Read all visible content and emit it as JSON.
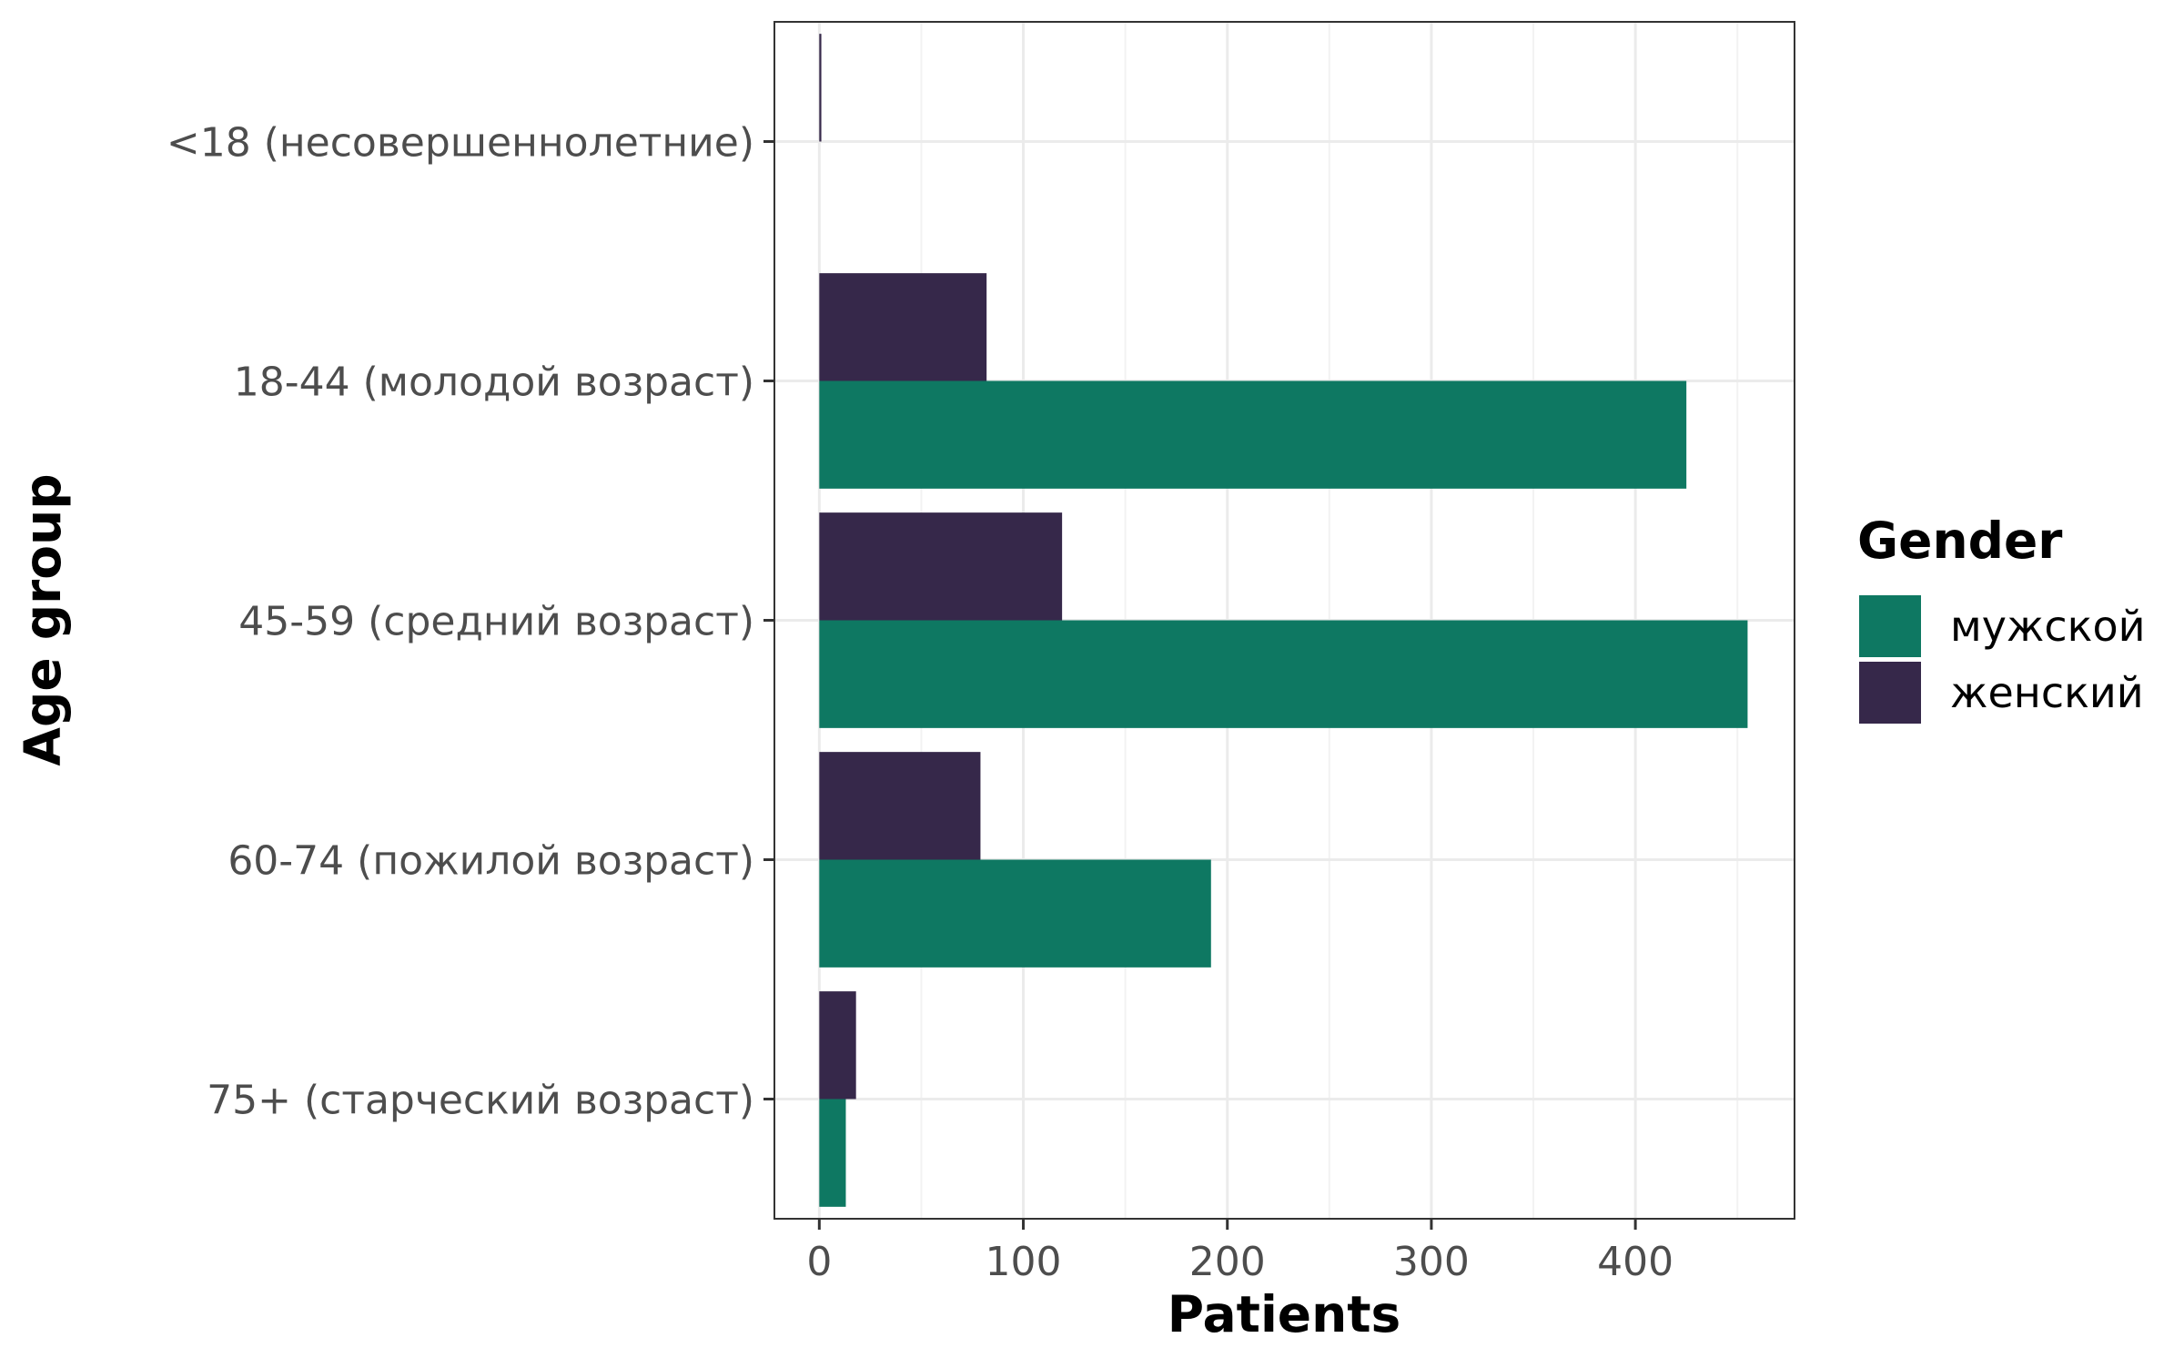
{
  "chart_data": {
    "type": "bar",
    "orientation": "horizontal",
    "categories": [
      "<18 (несовершеннолетние)",
      "18-44 (молодой возраст)",
      "45-59 (средний возраст)",
      "60-74 (пожилой возраст)",
      "75+ (старческий возраст)"
    ],
    "series": [
      {
        "name": "мужской",
        "color": "#0e7862",
        "values": [
          0,
          425,
          455,
          192,
          13
        ]
      },
      {
        "name": "женский",
        "color": "#36284a",
        "values": [
          1,
          82,
          119,
          79,
          18
        ]
      }
    ],
    "xlabel": "Patients",
    "ylabel": "Age group",
    "xlim": [
      -22,
      478
    ],
    "xticks": [
      0,
      100,
      200,
      300,
      400
    ],
    "legend": {
      "title": "Gender",
      "position": "right"
    },
    "grid": true
  }
}
